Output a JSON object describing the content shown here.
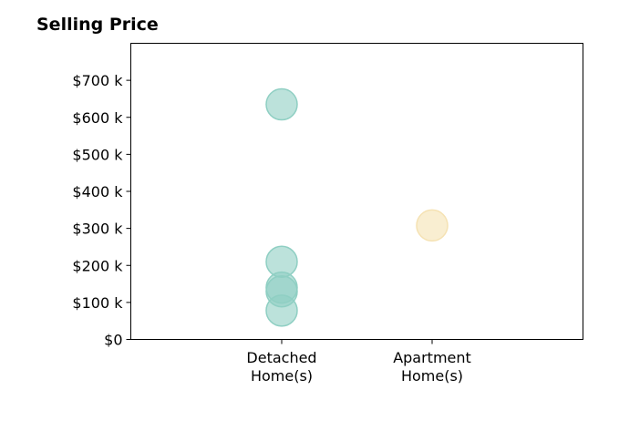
{
  "chart_data": {
    "type": "scatter",
    "title": "Selling Price",
    "xlabel": "",
    "ylabel": "",
    "categories": [
      "Detached\nHome(s)",
      "Apartment\nHome(s)"
    ],
    "yticks": [
      "$0",
      "$100 k",
      "$200 k",
      "$300 k",
      "$400 k",
      "$500 k",
      "$600 k",
      "$700 k"
    ],
    "ylim": [
      0,
      800000
    ],
    "series": [
      {
        "category": "Detached\nHome(s)",
        "color": "#8fcfc3",
        "values": [
          635000,
          210000,
          140000,
          130000,
          78000
        ]
      },
      {
        "category": "Apartment\nHome(s)",
        "color": "#f5e2b3",
        "values": [
          308000
        ]
      }
    ],
    "grid": false,
    "legend": "none"
  }
}
